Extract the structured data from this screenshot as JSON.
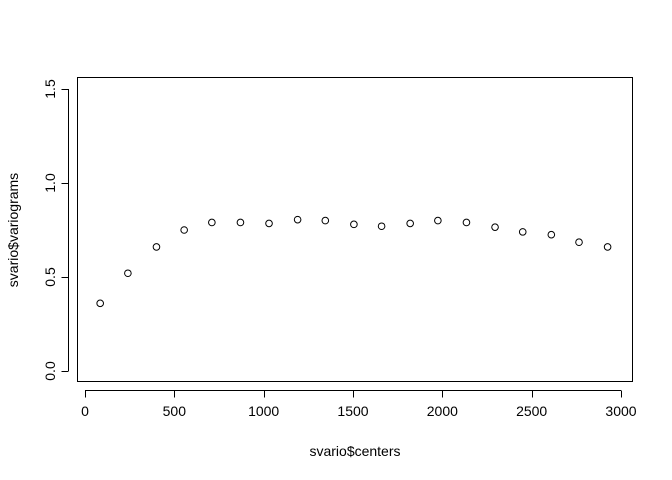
{
  "chart_data": {
    "type": "scatter",
    "title": "",
    "xlabel": "svario$centers",
    "ylabel": "svario$variograms",
    "xlim": [
      0,
      3000
    ],
    "ylim": [
      0,
      1.5
    ],
    "xticks": [
      0,
      500,
      1000,
      1500,
      2000,
      2500,
      3000
    ],
    "yticks": [
      0.0,
      0.5,
      1.0,
      1.5
    ],
    "xtick_labels": [
      "0",
      "500",
      "1000",
      "1500",
      "2000",
      "2500",
      "3000"
    ],
    "ytick_labels": [
      "0.0",
      "0.5",
      "1.0",
      "1.5"
    ],
    "grid": false,
    "legend": "none",
    "marker": "open-circle",
    "series": [
      {
        "x": [
          85,
          240,
          400,
          555,
          710,
          870,
          1030,
          1190,
          1345,
          1505,
          1660,
          1820,
          1975,
          2135,
          2295,
          2450,
          2610,
          2765,
          2925
        ],
        "y": [
          0.36,
          0.52,
          0.66,
          0.75,
          0.79,
          0.79,
          0.785,
          0.805,
          0.8,
          0.78,
          0.77,
          0.785,
          0.8,
          0.79,
          0.765,
          0.74,
          0.725,
          0.685,
          0.66
        ]
      }
    ]
  }
}
